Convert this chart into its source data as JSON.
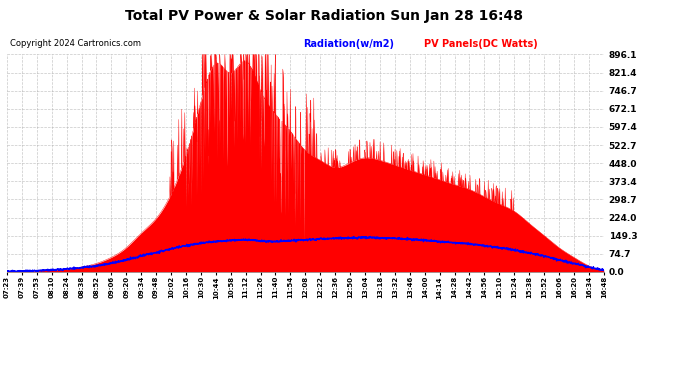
{
  "title": "Total PV Power & Solar Radiation Sun Jan 28 16:48",
  "copyright": "Copyright 2024 Cartronics.com",
  "legend_radiation": "Radiation(w/m2)",
  "legend_pv": "PV Panels(DC Watts)",
  "ylabel_right_values": [
    0.0,
    74.7,
    149.3,
    224.0,
    298.7,
    373.4,
    448.0,
    522.7,
    597.4,
    672.1,
    746.7,
    821.4,
    896.1
  ],
  "ylim": [
    0,
    896.1
  ],
  "background_color": "#ffffff",
  "plot_bg_color": "#ffffff",
  "grid_color": "#b0b0b0",
  "title_fontsize": 11,
  "radiation_color": "#0000ff",
  "pv_color": "#ff0000",
  "pv_fill_color": "#ff0000",
  "tick_labels": [
    "07:23",
    "07:39",
    "07:53",
    "08:10",
    "08:24",
    "08:38",
    "08:52",
    "09:06",
    "09:20",
    "09:34",
    "09:48",
    "10:02",
    "10:16",
    "10:30",
    "10:44",
    "10:58",
    "11:12",
    "11:26",
    "11:40",
    "11:54",
    "12:08",
    "12:22",
    "12:36",
    "12:50",
    "13:04",
    "13:18",
    "13:32",
    "13:46",
    "14:00",
    "14:14",
    "14:28",
    "14:42",
    "14:56",
    "15:10",
    "15:24",
    "15:38",
    "15:52",
    "16:06",
    "16:20",
    "16:34",
    "16:48"
  ]
}
